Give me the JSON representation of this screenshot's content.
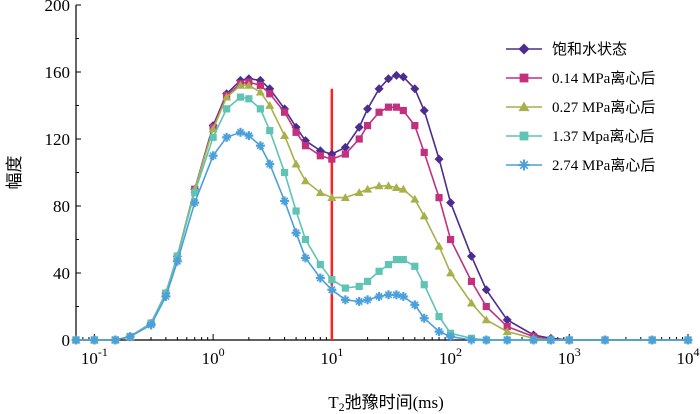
{
  "chart_data": {
    "type": "line",
    "xlabel": "T₂弛豫时间(ms)",
    "ylabel": "幅度",
    "xscale": "log",
    "xlim": [
      0.07,
      10000
    ],
    "ylim": [
      0,
      200
    ],
    "y_ticks": [
      0,
      40,
      80,
      120,
      160,
      200
    ],
    "y_tick_labels": [
      "0",
      "40",
      "80",
      "120",
      "160",
      "200"
    ],
    "x_ticks": [
      0.1,
      1,
      10,
      100,
      1000,
      10000
    ],
    "x_tick_labels": [
      {
        "base": "10",
        "exp": "-1"
      },
      {
        "base": "10",
        "exp": "0"
      },
      {
        "base": "10",
        "exp": "1"
      },
      {
        "base": "10",
        "exp": "2"
      },
      {
        "base": "10",
        "exp": "3"
      },
      {
        "base": "10",
        "exp": "4"
      }
    ],
    "grid": false,
    "legend_position": "right",
    "cutoff_line": {
      "x": 10,
      "y_top": 150,
      "color": "#ff2020"
    },
    "x_points": [
      0.07,
      0.1,
      0.15,
      0.2,
      0.3,
      0.4,
      0.5,
      0.7,
      1.0,
      1.3,
      1.7,
      2.0,
      2.5,
      3.0,
      4.0,
      5.0,
      6.0,
      8.0,
      10,
      13,
      17,
      20,
      25,
      30,
      35,
      40,
      50,
      60,
      80,
      100,
      150,
      200,
      300,
      500,
      700,
      1000,
      2000,
      5000,
      10000
    ],
    "series": [
      {
        "name": "饱和水状态",
        "marker": "diamond",
        "color": "#4b2d8f",
        "values": [
          0,
          0,
          0,
          2,
          10,
          28,
          50,
          90,
          128,
          147,
          155,
          156,
          155,
          150,
          138,
          127,
          119,
          113,
          111,
          115,
          127,
          138,
          150,
          156,
          158,
          157,
          150,
          137,
          108,
          82,
          50,
          30,
          12,
          3,
          1,
          0,
          0,
          0,
          0
        ]
      },
      {
        "name": "0.14 MPa离心后",
        "marker": "square",
        "color": "#c2307e",
        "values": [
          0,
          0,
          0,
          2,
          10,
          28,
          50,
          90,
          127,
          146,
          153,
          154,
          152,
          147,
          136,
          124,
          116,
          110,
          108,
          111,
          120,
          128,
          136,
          139,
          139,
          137,
          128,
          112,
          85,
          60,
          35,
          20,
          8,
          2,
          0,
          0,
          0,
          0,
          0
        ]
      },
      {
        "name": "0.27 MPa离心后",
        "marker": "triangle",
        "color": "#a8b04a",
        "values": [
          0,
          0,
          0,
          2,
          10,
          28,
          50,
          90,
          126,
          145,
          152,
          152,
          148,
          140,
          122,
          105,
          95,
          88,
          85,
          85,
          88,
          90,
          92,
          92,
          91,
          90,
          84,
          74,
          56,
          40,
          22,
          12,
          5,
          1,
          0,
          0,
          0,
          0,
          0
        ]
      },
      {
        "name": "1.37 Mpa离心后",
        "marker": "square",
        "color": "#5fc4b4",
        "values": [
          0,
          0,
          0,
          2,
          10,
          28,
          50,
          88,
          121,
          138,
          145,
          144,
          138,
          125,
          100,
          77,
          60,
          45,
          36,
          31,
          32,
          35,
          41,
          45,
          48,
          48,
          44,
          33,
          14,
          4,
          1,
          0,
          0,
          0,
          0,
          0,
          0,
          0,
          0
        ]
      },
      {
        "name": "2.74 MPa离心后",
        "marker": "star",
        "color": "#4ba0dc",
        "values": [
          0,
          0,
          0,
          2,
          9,
          26,
          47,
          82,
          110,
          121,
          124,
          122,
          116,
          105,
          83,
          64,
          49,
          37,
          30,
          24,
          23,
          24,
          26,
          27,
          27,
          26,
          21,
          13,
          5,
          2,
          0,
          0,
          0,
          0,
          0,
          0,
          0,
          0,
          0
        ]
      }
    ]
  }
}
